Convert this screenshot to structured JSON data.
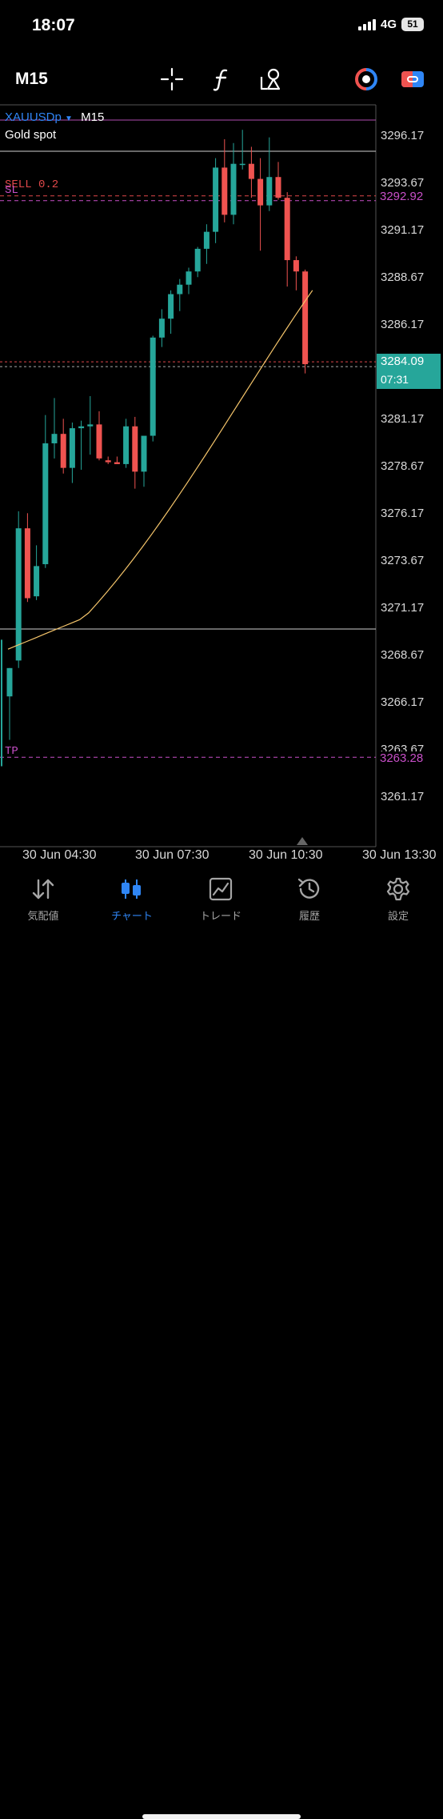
{
  "status_bar": {
    "time": "18:07",
    "network": "4G",
    "battery": "51"
  },
  "toolbar": {
    "timeframe": "M15",
    "tools": [
      "crosshair-icon",
      "indicator-f-icon",
      "objects-icon",
      "one-click-trading-icon",
      "trade-panel-icon"
    ]
  },
  "chart": {
    "symbol": "XAUUSDp",
    "symbol_tf": "M15",
    "description": "Gold spot",
    "sell_label": "SELL 0.2",
    "sl_label": "SL",
    "tp_label": "TP",
    "price_ticks": [
      "3296.17",
      "3293.67",
      "3291.17",
      "3288.67",
      "3286.17",
      "3283.67",
      "3281.17",
      "3278.67",
      "3276.17",
      "3273.67",
      "3271.17",
      "3268.67",
      "3266.17",
      "3263.67",
      "3261.17"
    ],
    "sell_price": "3292.92",
    "tp_price": "3263.28",
    "bid_price": "3284.09",
    "bar_timer": "07:31",
    "time_labels": [
      "30 Jun 04:30",
      "30 Jun 07:30",
      "30 Jun 10:30",
      "30 Jun 13:30"
    ],
    "colors": {
      "bull": "#26a69a",
      "bear": "#ef5350",
      "ma": "#f5c56b",
      "order": "#c84fc8",
      "sell_text": "#e0484a",
      "accent": "#2f86f6"
    }
  },
  "chart_data": {
    "type": "candlestick",
    "timeframe": "M15",
    "symbol": "XAUUSDp",
    "y_ticks": [
      3296.17,
      3293.67,
      3291.17,
      3288.67,
      3286.17,
      3283.67,
      3281.17,
      3278.67,
      3276.17,
      3273.67,
      3271.17,
      3268.67,
      3266.17,
      3263.67,
      3261.17
    ],
    "levels": {
      "sell": 3292.92,
      "tp": 3263.28,
      "bid": 3284.09
    },
    "candles": [
      {
        "o": 3266.5,
        "h": 3268.0,
        "l": 3264.2,
        "c": 3268.0
      },
      {
        "o": 3268.4,
        "h": 3276.3,
        "l": 3268.0,
        "c": 3275.4
      },
      {
        "o": 3275.4,
        "h": 3276.2,
        "l": 3271.5,
        "c": 3271.7
      },
      {
        "o": 3271.8,
        "h": 3274.5,
        "l": 3271.6,
        "c": 3273.4
      },
      {
        "o": 3273.5,
        "h": 3281.4,
        "l": 3273.3,
        "c": 3279.9
      },
      {
        "o": 3279.9,
        "h": 3282.3,
        "l": 3279.1,
        "c": 3280.4
      },
      {
        "o": 3280.4,
        "h": 3281.2,
        "l": 3278.3,
        "c": 3278.6
      },
      {
        "o": 3278.6,
        "h": 3281.0,
        "l": 3277.8,
        "c": 3280.7
      },
      {
        "o": 3280.7,
        "h": 3281.1,
        "l": 3278.5,
        "c": 3280.8
      },
      {
        "o": 3280.8,
        "h": 3282.4,
        "l": 3279.3,
        "c": 3280.9
      },
      {
        "o": 3280.9,
        "h": 3281.6,
        "l": 3279.0,
        "c": 3279.1
      },
      {
        "o": 3279.0,
        "h": 3279.2,
        "l": 3278.8,
        "c": 3278.9
      },
      {
        "o": 3278.9,
        "h": 3279.2,
        "l": 3278.8,
        "c": 3278.8
      },
      {
        "o": 3278.8,
        "h": 3281.2,
        "l": 3278.6,
        "c": 3280.8
      },
      {
        "o": 3280.8,
        "h": 3281.3,
        "l": 3277.5,
        "c": 3278.4
      },
      {
        "o": 3278.4,
        "h": 3280.2,
        "l": 3277.6,
        "c": 3280.3
      },
      {
        "o": 3280.3,
        "h": 3285.6,
        "l": 3280.0,
        "c": 3285.5
      },
      {
        "o": 3285.5,
        "h": 3287.0,
        "l": 3285.0,
        "c": 3286.5
      },
      {
        "o": 3286.5,
        "h": 3288.0,
        "l": 3285.7,
        "c": 3287.8
      },
      {
        "o": 3287.8,
        "h": 3288.6,
        "l": 3286.9,
        "c": 3288.3
      },
      {
        "o": 3288.3,
        "h": 3289.2,
        "l": 3287.8,
        "c": 3289.0
      },
      {
        "o": 3289.0,
        "h": 3290.3,
        "l": 3288.7,
        "c": 3290.2
      },
      {
        "o": 3290.2,
        "h": 3291.5,
        "l": 3289.4,
        "c": 3291.1
      },
      {
        "o": 3291.1,
        "h": 3295.0,
        "l": 3290.5,
        "c": 3294.5
      },
      {
        "o": 3294.5,
        "h": 3296.0,
        "l": 3291.6,
        "c": 3292.0
      },
      {
        "o": 3292.0,
        "h": 3295.8,
        "l": 3291.5,
        "c": 3294.7
      },
      {
        "o": 3294.7,
        "h": 3296.5,
        "l": 3294.4,
        "c": 3294.7
      },
      {
        "o": 3294.7,
        "h": 3295.6,
        "l": 3292.9,
        "c": 3293.9
      },
      {
        "o": 3293.9,
        "h": 3295.0,
        "l": 3290.1,
        "c": 3292.5
      },
      {
        "o": 3292.5,
        "h": 3296.1,
        "l": 3292.2,
        "c": 3294.0
      },
      {
        "o": 3294.0,
        "h": 3294.8,
        "l": 3292.8,
        "c": 3292.9
      },
      {
        "o": 3292.9,
        "h": 3293.2,
        "l": 3288.2,
        "c": 3289.6
      },
      {
        "o": 3289.6,
        "h": 3289.8,
        "l": 3288.0,
        "c": 3289.0
      },
      {
        "o": 3289.0,
        "h": 3289.1,
        "l": 3283.6,
        "c": 3284.09
      }
    ],
    "ma_start": 3269.0,
    "ma_end": 3288.0,
    "x_labels": [
      "30 Jun 04:30",
      "30 Jun 07:30",
      "30 Jun 10:30",
      "30 Jun 13:30"
    ]
  },
  "tabs": [
    {
      "label": "気配値",
      "icon": "quotes-icon"
    },
    {
      "label": "チャート",
      "icon": "chart-icon",
      "active": true
    },
    {
      "label": "トレード",
      "icon": "trade-icon"
    },
    {
      "label": "履歴",
      "icon": "history-icon"
    },
    {
      "label": "設定",
      "icon": "settings-icon"
    }
  ]
}
